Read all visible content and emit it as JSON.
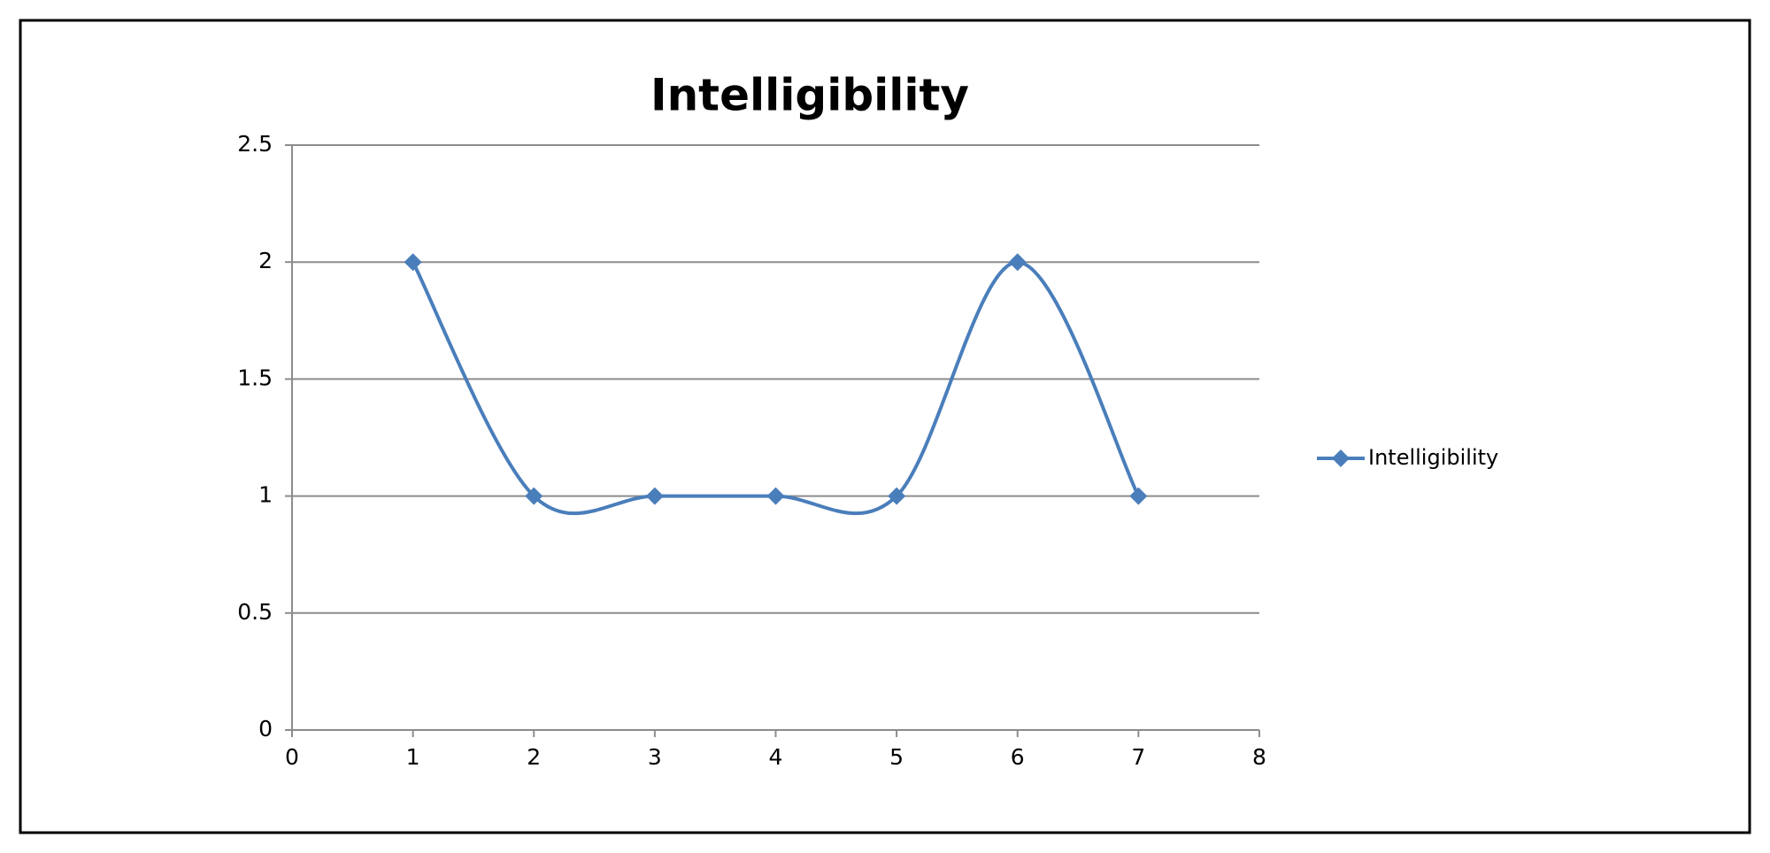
{
  "chart_data": {
    "type": "line",
    "title": "Intelligibility",
    "x": [
      1,
      2,
      3,
      4,
      5,
      6,
      7
    ],
    "series": [
      {
        "name": "Intelligibility",
        "color": "#4a7ebb",
        "values": [
          2,
          1,
          1,
          1,
          1,
          2,
          1
        ]
      }
    ],
    "xlim": [
      0,
      8
    ],
    "xticks": [
      0,
      1,
      2,
      3,
      4,
      5,
      6,
      7,
      8
    ],
    "ylim": [
      0,
      2.5
    ],
    "yticks": [
      0,
      0.5,
      1,
      1.5,
      2,
      2.5
    ],
    "grid": true,
    "smooth": true,
    "marker": "diamond",
    "legend": "right"
  }
}
